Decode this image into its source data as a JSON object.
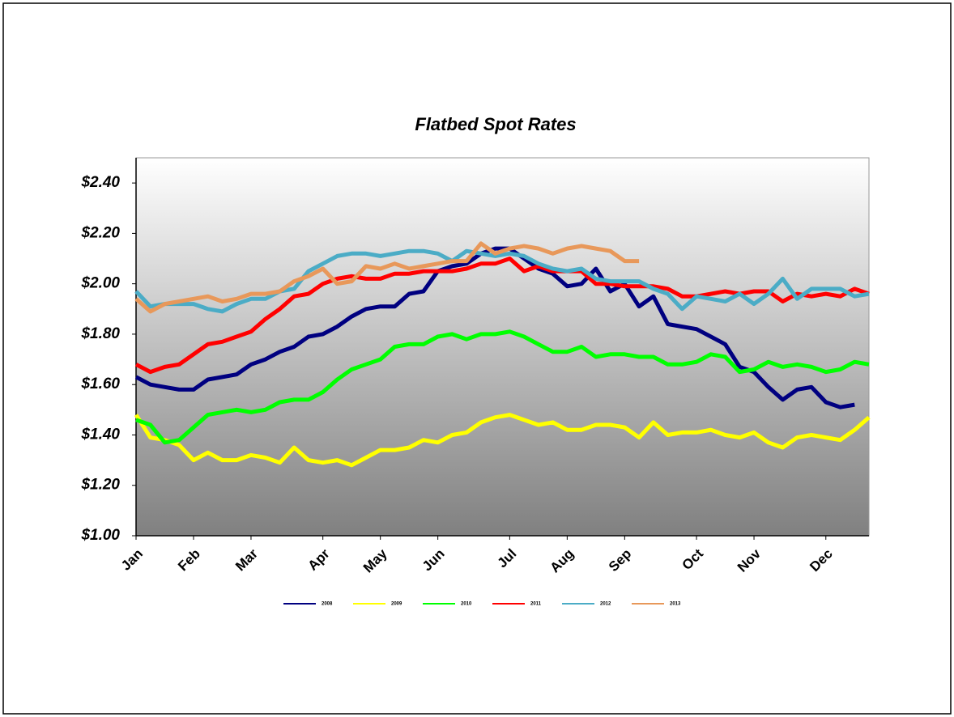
{
  "chart_data": {
    "type": "line",
    "title": "Flatbed Spot Rates",
    "categories": [
      "Jan",
      null,
      null,
      null,
      "Feb",
      null,
      null,
      null,
      "Mar",
      null,
      null,
      null,
      null,
      "Apr",
      null,
      null,
      null,
      "May",
      null,
      null,
      null,
      "Jun",
      null,
      null,
      null,
      null,
      "Jul",
      null,
      null,
      null,
      "Aug",
      null,
      null,
      null,
      "Sep",
      null,
      null,
      null,
      null,
      "Oct",
      null,
      null,
      null,
      "Nov",
      null,
      null,
      null,
      null,
      "Dec",
      null,
      null,
      null
    ],
    "ylim": [
      1.0,
      2.5
    ],
    "yticks": [
      {
        "value": 1.0,
        "label": "$1.00"
      },
      {
        "value": 1.2,
        "label": "$1.20"
      },
      {
        "value": 1.4,
        "label": "$1.40"
      },
      {
        "value": 1.6,
        "label": "$1.60"
      },
      {
        "value": 1.8,
        "label": "$1.80"
      },
      {
        "value": 2.0,
        "label": "$2.00"
      },
      {
        "value": 2.2,
        "label": "$2.20"
      },
      {
        "value": 2.4,
        "label": "$2.40"
      }
    ],
    "series": [
      {
        "name": "2008",
        "color": "#000080",
        "values": [
          1.63,
          1.6,
          1.59,
          1.58,
          1.58,
          1.62,
          1.63,
          1.64,
          1.68,
          1.7,
          1.73,
          1.75,
          1.79,
          1.8,
          1.83,
          1.87,
          1.9,
          1.91,
          1.91,
          1.96,
          1.97,
          2.05,
          2.07,
          2.08,
          2.12,
          2.14,
          2.14,
          2.1,
          2.06,
          2.04,
          1.99,
          2.0,
          2.06,
          1.97,
          2.0,
          1.91,
          1.95,
          1.84,
          1.83,
          1.82,
          1.79,
          1.76,
          1.67,
          1.65,
          1.59,
          1.54,
          1.58,
          1.59,
          1.53,
          1.51,
          1.52,
          null
        ]
      },
      {
        "name": "2009",
        "color": "#ffff00",
        "values": [
          1.48,
          1.39,
          1.38,
          1.36,
          1.3,
          1.33,
          1.3,
          1.3,
          1.32,
          1.31,
          1.29,
          1.35,
          1.3,
          1.29,
          1.3,
          1.28,
          1.31,
          1.34,
          1.34,
          1.35,
          1.38,
          1.37,
          1.4,
          1.41,
          1.45,
          1.47,
          1.48,
          1.46,
          1.44,
          1.45,
          1.42,
          1.42,
          1.44,
          1.44,
          1.43,
          1.39,
          1.45,
          1.4,
          1.41,
          1.41,
          1.42,
          1.4,
          1.39,
          1.41,
          1.37,
          1.35,
          1.39,
          1.4,
          1.39,
          1.38,
          1.42,
          1.47
        ]
      },
      {
        "name": "2010",
        "color": "#00ff00",
        "values": [
          1.46,
          1.44,
          1.37,
          1.38,
          1.43,
          1.48,
          1.49,
          1.5,
          1.49,
          1.5,
          1.53,
          1.54,
          1.54,
          1.57,
          1.62,
          1.66,
          1.68,
          1.7,
          1.75,
          1.76,
          1.76,
          1.79,
          1.8,
          1.78,
          1.8,
          1.8,
          1.81,
          1.79,
          1.76,
          1.73,
          1.73,
          1.75,
          1.71,
          1.72,
          1.72,
          1.71,
          1.71,
          1.68,
          1.68,
          1.69,
          1.72,
          1.71,
          1.65,
          1.66,
          1.69,
          1.67,
          1.68,
          1.67,
          1.65,
          1.66,
          1.69,
          1.68
        ]
      },
      {
        "name": "2011",
        "color": "#ff0000",
        "values": [
          1.68,
          1.65,
          1.67,
          1.68,
          1.72,
          1.76,
          1.77,
          1.79,
          1.81,
          1.86,
          1.9,
          1.95,
          1.96,
          2.0,
          2.02,
          2.03,
          2.02,
          2.02,
          2.04,
          2.04,
          2.05,
          2.05,
          2.05,
          2.06,
          2.08,
          2.08,
          2.1,
          2.05,
          2.07,
          2.05,
          2.05,
          2.05,
          2.0,
          2.0,
          1.99,
          1.99,
          1.99,
          1.98,
          1.95,
          1.95,
          1.96,
          1.97,
          1.96,
          1.97,
          1.97,
          1.93,
          1.96,
          1.95,
          1.96,
          1.95,
          1.98,
          1.96
        ]
      },
      {
        "name": "2012",
        "color": "#4bacc6",
        "values": [
          1.97,
          1.91,
          1.92,
          1.92,
          1.92,
          1.9,
          1.89,
          1.92,
          1.94,
          1.94,
          1.97,
          1.98,
          2.05,
          2.08,
          2.11,
          2.12,
          2.12,
          2.11,
          2.12,
          2.13,
          2.13,
          2.12,
          2.09,
          2.13,
          2.12,
          2.11,
          2.12,
          2.11,
          2.08,
          2.06,
          2.05,
          2.06,
          2.02,
          2.01,
          2.01,
          2.01,
          1.98,
          1.96,
          1.9,
          1.95,
          1.94,
          1.93,
          1.96,
          1.92,
          1.96,
          2.02,
          1.94,
          1.98,
          1.98,
          1.98,
          1.95,
          1.96
        ]
      },
      {
        "name": "2013",
        "color": "#e8985a",
        "values": [
          1.94,
          1.89,
          1.92,
          1.93,
          1.94,
          1.95,
          1.93,
          1.94,
          1.96,
          1.96,
          1.97,
          2.01,
          2.03,
          2.06,
          2.0,
          2.01,
          2.07,
          2.06,
          2.08,
          2.06,
          2.07,
          2.08,
          2.09,
          2.09,
          2.16,
          2.12,
          2.14,
          2.15,
          2.14,
          2.12,
          2.14,
          2.15,
          2.14,
          2.13,
          2.09,
          2.09,
          null,
          null,
          null,
          null,
          null,
          null,
          null,
          null,
          null,
          null,
          null,
          null,
          null,
          null,
          null,
          null
        ]
      }
    ]
  }
}
